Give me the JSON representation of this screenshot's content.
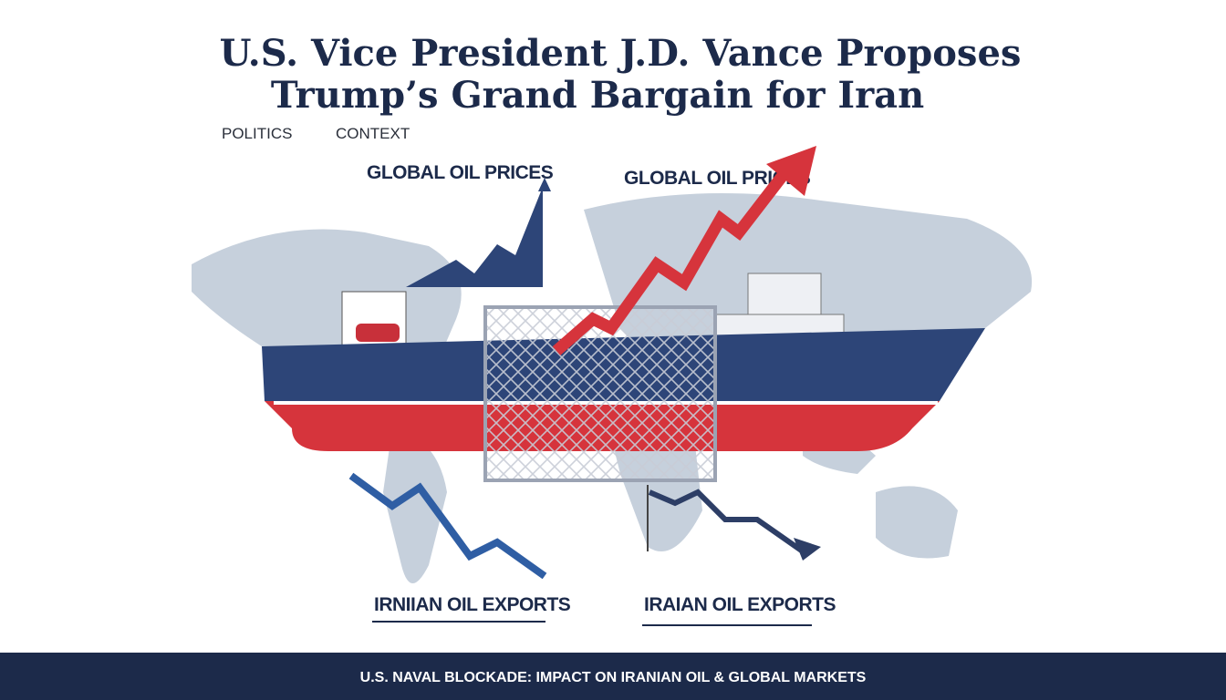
{
  "header": {
    "title_lines": [
      "U.S. Vice President J.D. Vance Proposes",
      "Trump’s Grand Bargain for Iran"
    ],
    "tags": [
      "POLITICS",
      "CONTEXT"
    ]
  },
  "labels": {
    "prices_left": "GLOBAL OIL PRICES",
    "prices_right": "GLOBAL OIL PRICES",
    "exports_left": "IRNIIAN OIL EXPORTS",
    "exports_right": "IRAIAN OIL EXPORTS"
  },
  "footer": "U.S. NAVAL BLOCKADE: IMPACT ON IRANIAN OIL & GLOBAL MARKETS"
}
